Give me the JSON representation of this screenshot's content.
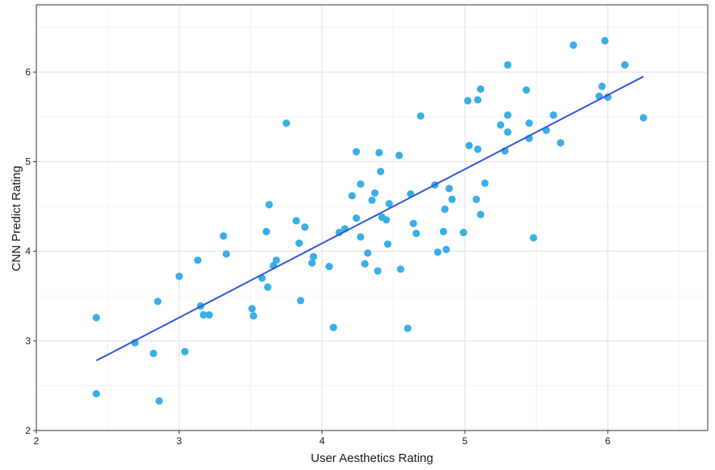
{
  "chart_data": {
    "type": "scatter",
    "title": "",
    "xlabel": "User Aesthetics Rating",
    "ylabel": "CNN Predict Rating",
    "xlim": [
      2,
      6.7
    ],
    "ylim": [
      2,
      6.75
    ],
    "xticks": [
      "2",
      "3",
      "4",
      "5",
      "6"
    ],
    "yticks": [
      "2",
      "3",
      "4",
      "5",
      "6"
    ],
    "grid": true,
    "legend": "none",
    "colors": {
      "points": "#3aaee6",
      "fit_line": "#3355dd",
      "grid_major": "#e0e0e0",
      "grid_minor": "#f0f0f0",
      "panel_border": "#333333"
    },
    "fit_line": {
      "x": [
        2.42,
        6.25
      ],
      "y": [
        2.78,
        5.95
      ]
    },
    "points": [
      [
        2.42,
        3.26
      ],
      [
        2.42,
        2.41
      ],
      [
        2.69,
        2.98
      ],
      [
        2.82,
        2.86
      ],
      [
        2.85,
        3.44
      ],
      [
        2.86,
        2.33
      ],
      [
        3.0,
        3.72
      ],
      [
        3.04,
        2.88
      ],
      [
        3.13,
        3.9
      ],
      [
        3.15,
        3.39
      ],
      [
        3.17,
        3.29
      ],
      [
        3.21,
        3.29
      ],
      [
        3.31,
        4.17
      ],
      [
        3.33,
        3.97
      ],
      [
        3.51,
        3.36
      ],
      [
        3.52,
        3.28
      ],
      [
        3.58,
        3.7
      ],
      [
        3.61,
        4.22
      ],
      [
        3.62,
        3.6
      ],
      [
        3.63,
        4.52
      ],
      [
        3.66,
        3.84
      ],
      [
        3.68,
        3.9
      ],
      [
        3.75,
        5.43
      ],
      [
        3.82,
        4.34
      ],
      [
        3.84,
        4.09
      ],
      [
        3.85,
        3.45
      ],
      [
        3.88,
        4.27
      ],
      [
        3.93,
        3.87
      ],
      [
        3.94,
        3.94
      ],
      [
        4.05,
        3.83
      ],
      [
        4.08,
        3.15
      ],
      [
        4.12,
        4.21
      ],
      [
        4.16,
        4.25
      ],
      [
        4.21,
        4.62
      ],
      [
        4.24,
        4.37
      ],
      [
        4.24,
        5.11
      ],
      [
        4.27,
        4.16
      ],
      [
        4.27,
        4.75
      ],
      [
        4.3,
        3.86
      ],
      [
        4.32,
        3.98
      ],
      [
        4.35,
        4.57
      ],
      [
        4.37,
        4.65
      ],
      [
        4.39,
        3.78
      ],
      [
        4.4,
        5.1
      ],
      [
        4.41,
        4.89
      ],
      [
        4.42,
        4.38
      ],
      [
        4.45,
        4.35
      ],
      [
        4.46,
        4.08
      ],
      [
        4.47,
        4.53
      ],
      [
        4.54,
        5.07
      ],
      [
        4.55,
        3.8
      ],
      [
        4.6,
        3.14
      ],
      [
        4.62,
        4.64
      ],
      [
        4.64,
        4.31
      ],
      [
        4.66,
        4.2
      ],
      [
        4.69,
        5.51
      ],
      [
        4.79,
        4.74
      ],
      [
        4.81,
        3.99
      ],
      [
        4.85,
        4.22
      ],
      [
        4.86,
        4.47
      ],
      [
        4.87,
        4.02
      ],
      [
        4.89,
        4.7
      ],
      [
        4.91,
        4.58
      ],
      [
        4.99,
        4.21
      ],
      [
        5.02,
        5.68
      ],
      [
        5.03,
        5.18
      ],
      [
        5.08,
        4.58
      ],
      [
        5.09,
        5.69
      ],
      [
        5.09,
        5.14
      ],
      [
        5.11,
        4.41
      ],
      [
        5.11,
        5.81
      ],
      [
        5.14,
        4.76
      ],
      [
        5.25,
        5.41
      ],
      [
        5.28,
        5.12
      ],
      [
        5.3,
        5.52
      ],
      [
        5.3,
        5.33
      ],
      [
        5.3,
        6.08
      ],
      [
        5.43,
        5.8
      ],
      [
        5.45,
        5.43
      ],
      [
        5.45,
        5.26
      ],
      [
        5.48,
        4.15
      ],
      [
        5.57,
        5.35
      ],
      [
        5.62,
        5.52
      ],
      [
        5.67,
        5.21
      ],
      [
        5.76,
        6.3
      ],
      [
        5.94,
        5.73
      ],
      [
        5.96,
        5.84
      ],
      [
        5.98,
        6.35
      ],
      [
        6.0,
        5.72
      ],
      [
        6.12,
        6.08
      ],
      [
        6.25,
        5.49
      ]
    ]
  }
}
